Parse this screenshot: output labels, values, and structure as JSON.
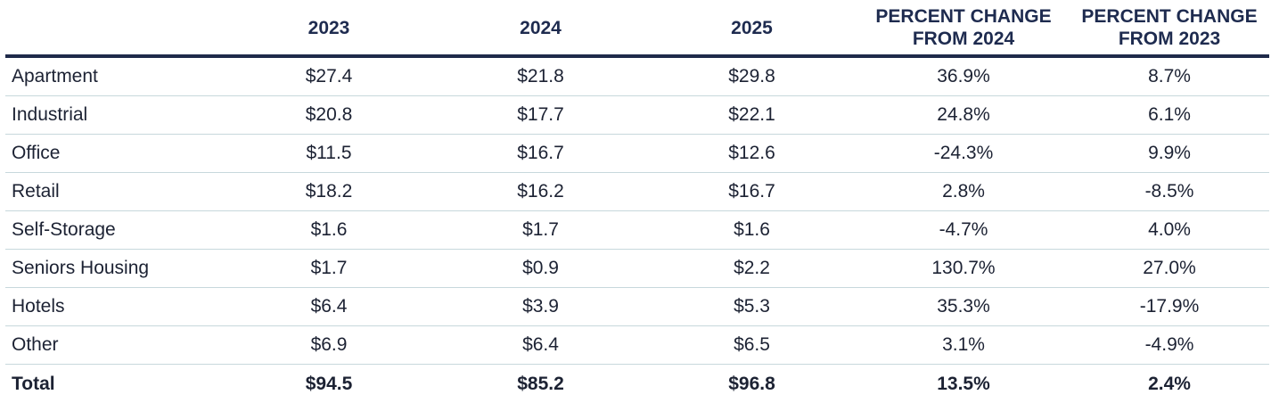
{
  "chart_data": {
    "type": "table",
    "columns": [
      "",
      "2023",
      "2024",
      "2025",
      "PERCENT CHANGE FROM 2024",
      "PERCENT CHANGE FROM 2023"
    ],
    "header": {
      "col1": "2023",
      "col2": "2024",
      "col3": "2025",
      "col4_line1": "PERCENT CHANGE",
      "col4_line2": "FROM 2024",
      "col5_line1": "PERCENT CHANGE",
      "col5_line2": "FROM 2023"
    },
    "rows": [
      {
        "label": "Apartment",
        "y2023": "$27.4",
        "y2024": "$21.8",
        "y2025": "$29.8",
        "pct_2024": "36.9%",
        "pct_2023": "8.7%"
      },
      {
        "label": "Industrial",
        "y2023": "$20.8",
        "y2024": "$17.7",
        "y2025": "$22.1",
        "pct_2024": "24.8%",
        "pct_2023": "6.1%"
      },
      {
        "label": "Office",
        "y2023": "$11.5",
        "y2024": "$16.7",
        "y2025": "$12.6",
        "pct_2024": "-24.3%",
        "pct_2023": "9.9%"
      },
      {
        "label": "Retail",
        "y2023": "$18.2",
        "y2024": "$16.2",
        "y2025": "$16.7",
        "pct_2024": "2.8%",
        "pct_2023": "-8.5%"
      },
      {
        "label": "Self-Storage",
        "y2023": "$1.6",
        "y2024": "$1.7",
        "y2025": "$1.6",
        "pct_2024": "-4.7%",
        "pct_2023": "4.0%"
      },
      {
        "label": "Seniors Housing",
        "y2023": "$1.7",
        "y2024": "$0.9",
        "y2025": "$2.2",
        "pct_2024": "130.7%",
        "pct_2023": "27.0%"
      },
      {
        "label": "Hotels",
        "y2023": "$6.4",
        "y2024": "$3.9",
        "y2025": "$5.3",
        "pct_2024": "35.3%",
        "pct_2023": "-17.9%"
      },
      {
        "label": "Other",
        "y2023": "$6.9",
        "y2024": "$6.4",
        "y2025": "$6.5",
        "pct_2024": "3.1%",
        "pct_2023": "-4.9%"
      }
    ],
    "total": {
      "label": "Total",
      "y2023": "$94.5",
      "y2024": "$85.2",
      "y2025": "$96.8",
      "pct_2024": "13.5%",
      "pct_2023": "2.4%"
    }
  },
  "colors": {
    "header_text": "#1e2b4f",
    "header_rule": "#1f2a4a",
    "row_divider": "#c7d8dc",
    "body_text": "#1c2233"
  }
}
